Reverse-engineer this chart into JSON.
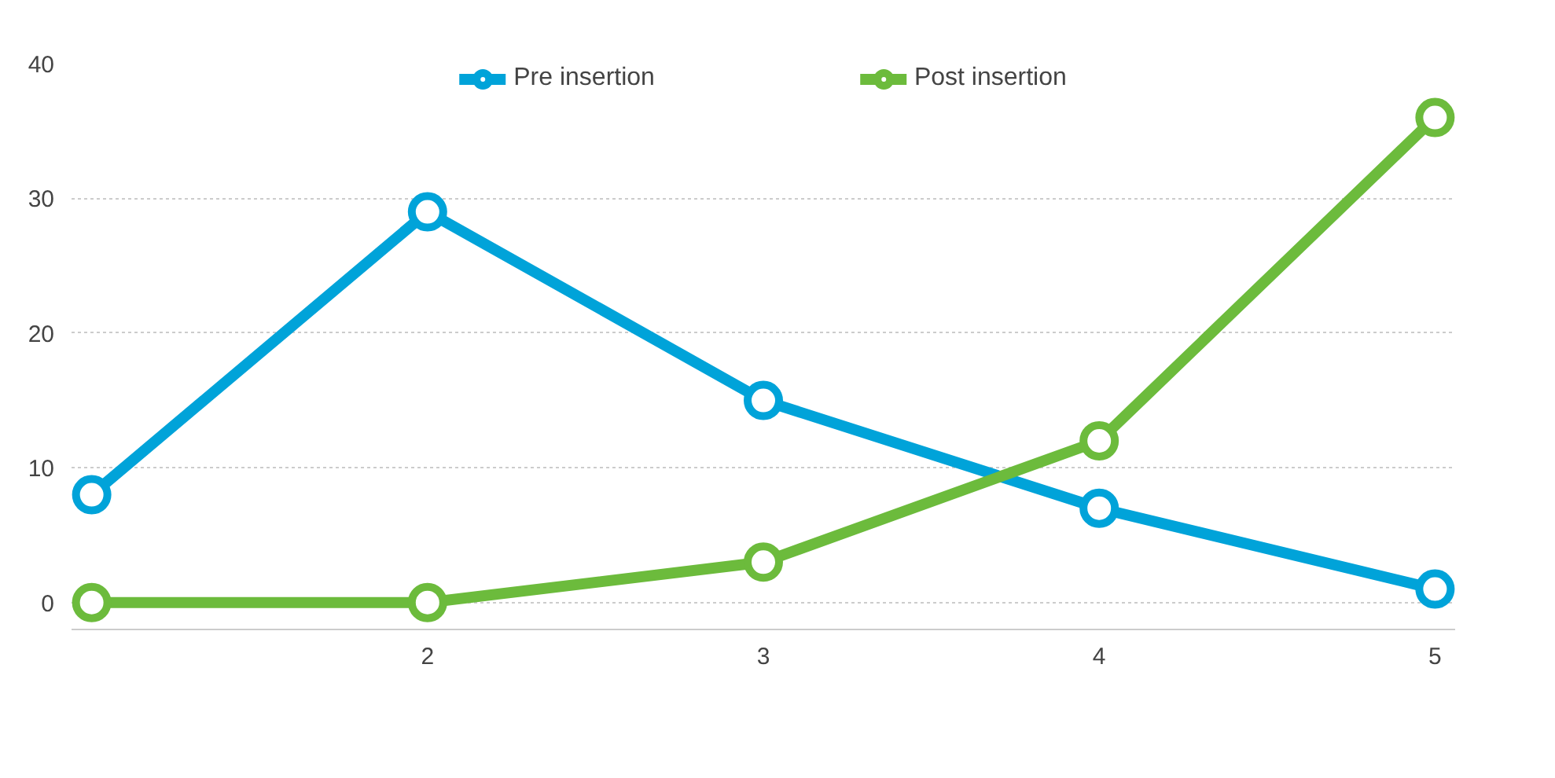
{
  "chart_data": {
    "type": "line",
    "x": [
      1,
      2,
      3,
      4,
      5
    ],
    "series": [
      {
        "name": "Pre insertion",
        "color": "#00a3d9",
        "values": [
          8,
          29,
          15,
          7,
          1
        ]
      },
      {
        "name": "Post insertion",
        "color": "#6cbb3c",
        "values": [
          0,
          0,
          3,
          12,
          36
        ]
      }
    ],
    "xlim": [
      0.94,
      5.06
    ],
    "xticks": [
      2,
      3,
      4,
      5
    ],
    "ylim": [
      -2,
      40
    ],
    "yticks": [
      0,
      10,
      20,
      30,
      40
    ],
    "grid": "y",
    "legend": "top",
    "marker": "circle",
    "line_style": "solid"
  }
}
